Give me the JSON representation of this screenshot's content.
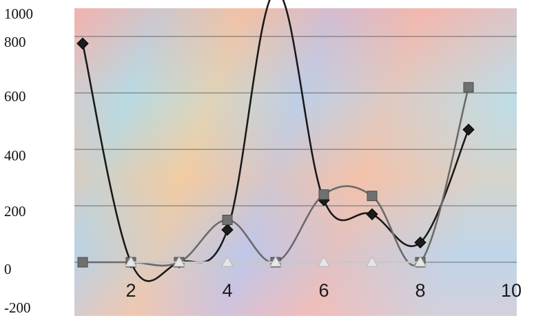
{
  "chart_data": {
    "type": "line",
    "title": "",
    "xlabel": "",
    "ylabel": "",
    "xlim": [
      1,
      10
    ],
    "ylim": [
      -200,
      1000
    ],
    "grid": true,
    "y_tick_labels": [
      "1000",
      "800",
      "600",
      "400",
      "200",
      "0",
      "-200"
    ],
    "x_tick_labels": [
      "2",
      "4",
      "6",
      "8",
      "10"
    ],
    "series": [
      {
        "marker": "diamond",
        "color": "#1a1a1a",
        "points": [
          [
            1,
            775
          ],
          [
            2,
            0
          ],
          [
            3,
            0
          ],
          [
            4,
            115
          ],
          [
            5,
            960
          ],
          [
            6,
            220
          ],
          [
            7,
            170
          ],
          [
            8,
            70
          ],
          [
            9,
            470
          ]
        ]
      },
      {
        "marker": "square",
        "color": "#6a6a6a",
        "points": [
          [
            1,
            0
          ],
          [
            2,
            0
          ],
          [
            3,
            0
          ],
          [
            4,
            150
          ],
          [
            5,
            0
          ],
          [
            6,
            240
          ],
          [
            7,
            235
          ],
          [
            8,
            0
          ],
          [
            9,
            620
          ]
        ]
      },
      {
        "marker": "triangle",
        "color": "#d8d8d8",
        "points": [
          [
            2,
            0
          ],
          [
            3,
            0
          ],
          [
            4,
            0
          ],
          [
            5,
            0
          ],
          [
            6,
            0
          ],
          [
            7,
            0
          ],
          [
            8,
            0
          ]
        ]
      }
    ]
  }
}
